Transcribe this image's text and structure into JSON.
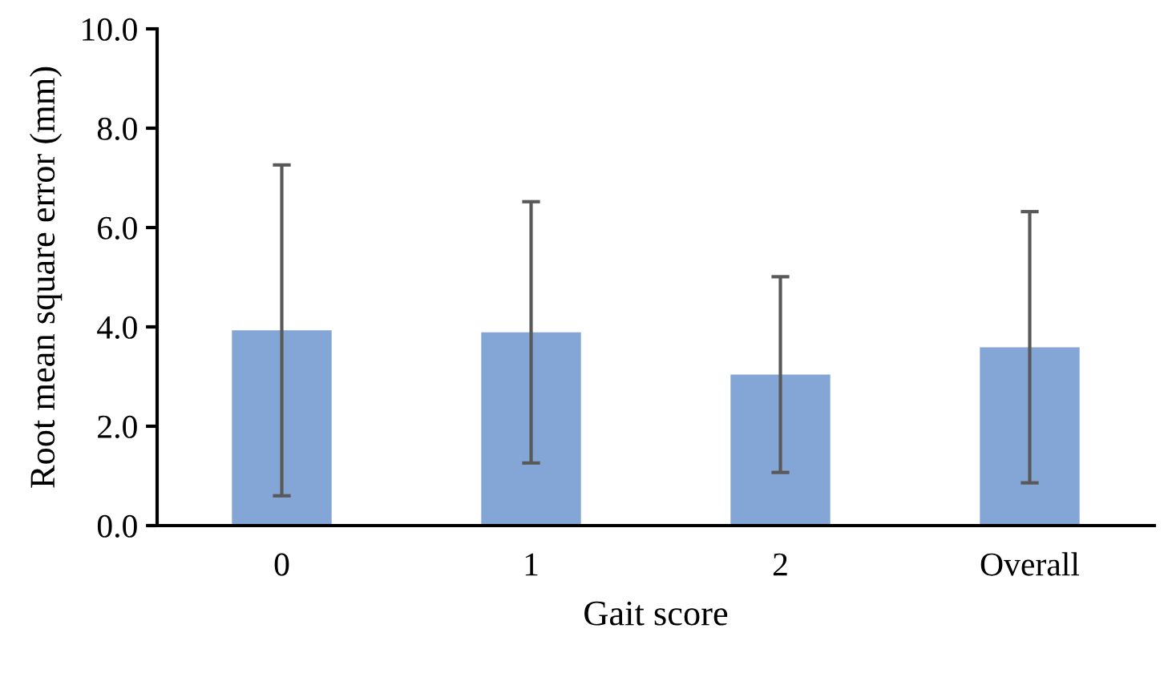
{
  "chart_data": {
    "type": "bar",
    "xlabel": "Gait score",
    "ylabel": "Root mean square error (mm)",
    "categories": [
      "0",
      "1",
      "2",
      "Overall"
    ],
    "values": [
      3.93,
      3.89,
      3.04,
      3.59
    ],
    "errors": [
      3.33,
      2.63,
      1.97,
      2.73
    ],
    "color": "#84a6d6",
    "ylim": [
      0,
      10
    ],
    "yticks": [
      {
        "value": 0,
        "label": "0.0"
      },
      {
        "value": 2,
        "label": "2.0"
      },
      {
        "value": 4,
        "label": "4.0"
      },
      {
        "value": 6,
        "label": "6.0"
      },
      {
        "value": 8,
        "label": "8.0"
      },
      {
        "value": 10,
        "label": "10.0"
      }
    ],
    "grid": false,
    "legend": false
  }
}
